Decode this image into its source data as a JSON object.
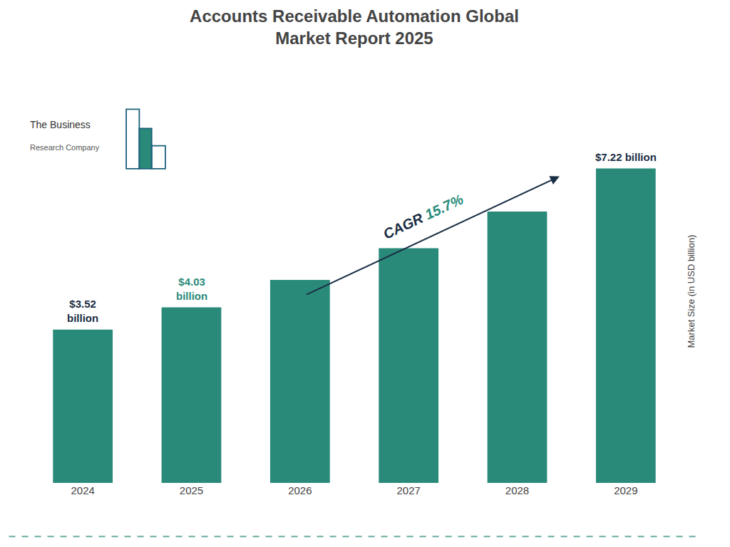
{
  "chart_data": {
    "type": "bar",
    "title": "Accounts Receivable Automation Global\nMarket Report 2025",
    "categories": [
      "2024",
      "2025",
      "2026",
      "2027",
      "2028",
      "2029"
    ],
    "values": [
      3.52,
      4.03,
      4.66,
      5.39,
      6.23,
      7.22
    ],
    "color": "#2a8a7a",
    "ylabel": "Market Size (in USD billion)",
    "ylim": [
      0,
      8.8
    ],
    "tick_labels": "x",
    "grid": false,
    "annotations": [
      {
        "text": "$3.52\nbillion",
        "x": "2024",
        "color": "#1a2e44"
      },
      {
        "text": "$4.03\nbillion",
        "x": "2025",
        "color": "#2a8a7a"
      },
      {
        "text": "$7.22 billion",
        "x": "2029",
        "color": "#1a2e44"
      },
      {
        "text": [
          "CAGR ",
          "15.7%"
        ],
        "colors": [
          "#1a2e44",
          "#2a8a7a"
        ],
        "arrow_color": "#1a2e44"
      },
      {
        "text": [
          "The Business",
          "Research Company"
        ],
        "logo_colors": [
          "#1a5f7a",
          "#2a8a7a"
        ]
      }
    ],
    "footer_line_color": "#2a8a7a"
  }
}
